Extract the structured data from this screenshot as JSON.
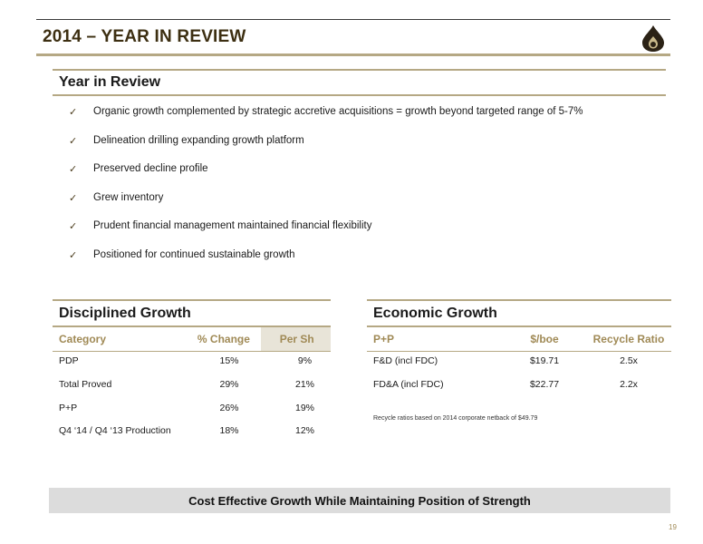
{
  "header": {
    "title": "2014 – YEAR IN REVIEW",
    "logo_icon": "oil-drop-logo-icon"
  },
  "review": {
    "title": "Year in Review",
    "bullets": [
      "Organic growth complemented by strategic accretive acquisitions = growth beyond targeted range of 5-7%",
      "Delineation drilling expanding growth platform",
      "Preserved decline profile",
      "Grew inventory",
      "Prudent financial management maintained financial flexibility",
      "Positioned for continued sustainable growth"
    ]
  },
  "disciplined_growth": {
    "title": "Disciplined Growth",
    "columns": [
      "Category",
      "% Change",
      "Per Sh"
    ],
    "rows": [
      [
        "PDP",
        "15%",
        "9%"
      ],
      [
        "Total Proved",
        "29%",
        "21%"
      ],
      [
        "P+P",
        "26%",
        "19%"
      ],
      [
        "Q4 ‘14 / Q4 ‘13 Production",
        "18%",
        "12%"
      ]
    ]
  },
  "economic_growth": {
    "title": "Economic Growth",
    "columns": [
      "P+P",
      "$/boe",
      "Recycle Ratio"
    ],
    "rows": [
      [
        "F&D (incl FDC)",
        "$19.71",
        "2.5x"
      ],
      [
        "FD&A (incl FDC)",
        "$22.77",
        "2.2x"
      ]
    ],
    "note": "Recycle ratios based on 2014 corporate netback of $49.79"
  },
  "banner": "Cost Effective Growth While Maintaining Position of Strength",
  "page_number": "19",
  "colors": {
    "accent": "#b5a884",
    "title_text": "#3d2f12",
    "header_text": "#a08a56",
    "banner_bg": "#dcdcdc"
  }
}
